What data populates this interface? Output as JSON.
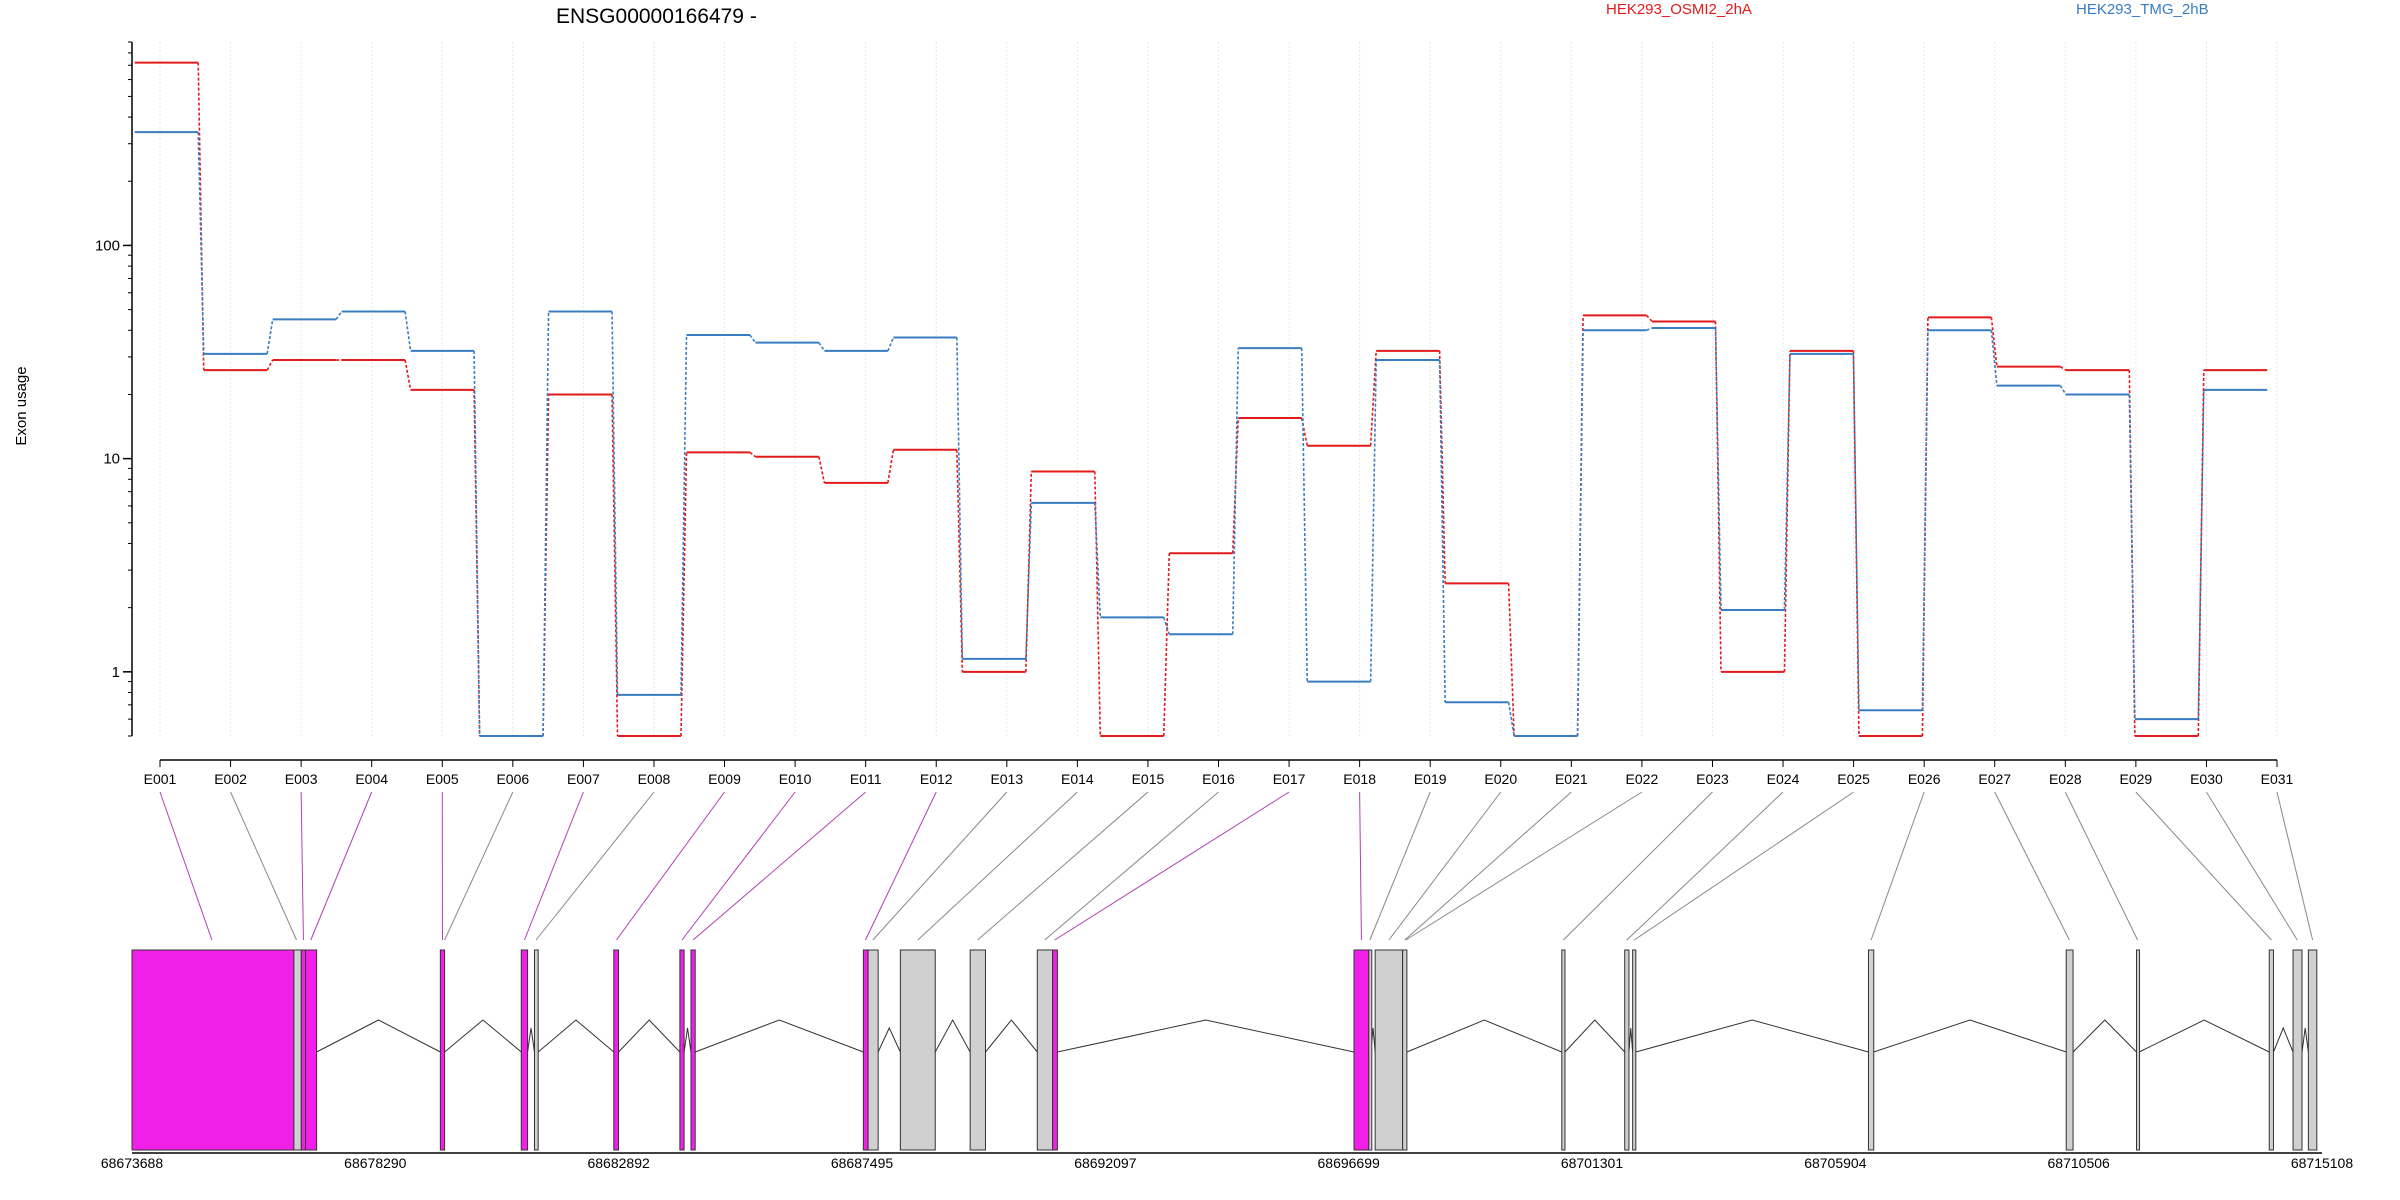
{
  "chart_data": {
    "type": "line",
    "title": "ENSG00000166479 -",
    "xlabel": "",
    "ylabel": "Exon usage",
    "y_scale": "log",
    "ylim": [
      0.5,
      900
    ],
    "y_ticks": [
      1,
      10,
      100
    ],
    "y_tick_labels": [
      "1",
      "10",
      "100"
    ],
    "grid": "vertical dotted lines at each exon",
    "legend_placement": "top",
    "colors": {
      "HEK293_OSMI2_2hA": "#e31a1c",
      "HEK293_TMG_2hB": "#3a7cc1",
      "exon_de": "#f020e8",
      "exon_other": "#d0d0d0"
    },
    "categories": [
      "E001",
      "E002",
      "E003",
      "E004",
      "E005",
      "E006",
      "E007",
      "E008",
      "E009",
      "E010",
      "E011",
      "E012",
      "E013",
      "E014",
      "E015",
      "E016",
      "E017",
      "E018",
      "E019",
      "E020",
      "E021",
      "E022",
      "E023",
      "E024",
      "E025",
      "E026",
      "E027",
      "E028",
      "E029",
      "E030",
      "E031"
    ],
    "series": [
      {
        "name": "HEK293_OSMI2_2hA",
        "color": "#e31a1c",
        "values": [
          720,
          26,
          29,
          29,
          21,
          0.5,
          20,
          0.5,
          10.7,
          10.2,
          7.7,
          11,
          1.0,
          8.7,
          0.5,
          3.6,
          15.5,
          11.5,
          32,
          2.6,
          0.5,
          47,
          44,
          1.0,
          32,
          0.5,
          46,
          27,
          26,
          0.5,
          26
        ]
      },
      {
        "name": "HEK293_TMG_2hB",
        "color": "#3a7cc1",
        "values": [
          340,
          31,
          45,
          49,
          32,
          0.5,
          49,
          0.78,
          38,
          35,
          32,
          37,
          1.15,
          6.2,
          1.8,
          1.5,
          33,
          0.9,
          29,
          0.72,
          0.5,
          40,
          41,
          1.95,
          31,
          0.66,
          40,
          22,
          20,
          0.6,
          21
        ]
      }
    ],
    "gene_model": {
      "genomic_range": [
        68673688,
        68715108
      ],
      "axis_ticks": [
        68673688,
        68678290,
        68682892,
        68687495,
        68692097,
        68696699,
        68701301,
        68705904,
        68710506,
        68715108
      ],
      "exons": [
        {
          "start": 68673688,
          "end": 68676750,
          "highlight": true
        },
        {
          "start": 68676750,
          "end": 68676890,
          "highlight": false
        },
        {
          "start": 68676890,
          "end": 68676970,
          "highlight": true
        },
        {
          "start": 68676970,
          "end": 68677180,
          "highlight": true
        },
        {
          "start": 68679520,
          "end": 68679600,
          "highlight": true
        },
        {
          "start": 68681050,
          "end": 68681170,
          "highlight": true
        },
        {
          "start": 68681300,
          "end": 68681370,
          "highlight": false
        },
        {
          "start": 68682800,
          "end": 68682890,
          "highlight": true
        },
        {
          "start": 68684050,
          "end": 68684130,
          "highlight": true
        },
        {
          "start": 68684260,
          "end": 68684340,
          "highlight": true
        },
        {
          "start": 68687520,
          "end": 68687610,
          "highlight": true
        },
        {
          "start": 68687610,
          "end": 68687800,
          "highlight": false
        },
        {
          "start": 68688220,
          "end": 68688880,
          "highlight": false
        },
        {
          "start": 68689540,
          "end": 68689830,
          "highlight": false
        },
        {
          "start": 68690810,
          "end": 68691100,
          "highlight": false
        },
        {
          "start": 68691100,
          "end": 68691190,
          "highlight": true
        },
        {
          "start": 68696800,
          "end": 68697080,
          "highlight": true
        },
        {
          "start": 68697080,
          "end": 68697120,
          "highlight": false
        },
        {
          "start": 68697200,
          "end": 68697720,
          "highlight": false
        },
        {
          "start": 68697720,
          "end": 68697800,
          "highlight": false
        },
        {
          "start": 68700730,
          "end": 68700790,
          "highlight": false
        },
        {
          "start": 68701920,
          "end": 68702000,
          "highlight": false
        },
        {
          "start": 68702070,
          "end": 68702130,
          "highlight": false
        },
        {
          "start": 68706530,
          "end": 68706630,
          "highlight": false
        },
        {
          "start": 68710270,
          "end": 68710400,
          "highlight": false
        },
        {
          "start": 68711600,
          "end": 68711650,
          "highlight": false
        },
        {
          "start": 68714110,
          "end": 68714190,
          "highlight": false
        },
        {
          "start": 68714560,
          "end": 68714730,
          "highlight": false
        },
        {
          "start": 68714850,
          "end": 68715010,
          "highlight": false
        }
      ],
      "exon_bin_map": [
        {
          "bin": "E001",
          "coord": 68675200,
          "highlight": true
        },
        {
          "bin": "E002",
          "coord": 68676800,
          "highlight": false
        },
        {
          "bin": "E003",
          "coord": 68676930,
          "highlight": true
        },
        {
          "bin": "E004",
          "coord": 68677070,
          "highlight": true
        },
        {
          "bin": "E005",
          "coord": 68679560,
          "highlight": true
        },
        {
          "bin": "E006",
          "coord": 68679600,
          "highlight": false
        },
        {
          "bin": "E007",
          "coord": 68681110,
          "highlight": true
        },
        {
          "bin": "E008",
          "coord": 68681330,
          "highlight": false
        },
        {
          "bin": "E009",
          "coord": 68682850,
          "highlight": true
        },
        {
          "bin": "E010",
          "coord": 68684090,
          "highlight": true
        },
        {
          "bin": "E011",
          "coord": 68684300,
          "highlight": true
        },
        {
          "bin": "E012",
          "coord": 68687560,
          "highlight": true
        },
        {
          "bin": "E013",
          "coord": 68687700,
          "highlight": false
        },
        {
          "bin": "E014",
          "coord": 68688550,
          "highlight": false
        },
        {
          "bin": "E015",
          "coord": 68689680,
          "highlight": false
        },
        {
          "bin": "E016",
          "coord": 68690950,
          "highlight": false
        },
        {
          "bin": "E017",
          "coord": 68691140,
          "highlight": true
        },
        {
          "bin": "E018",
          "coord": 68696940,
          "highlight": true
        },
        {
          "bin": "E019",
          "coord": 68697100,
          "highlight": false
        },
        {
          "bin": "E020",
          "coord": 68697460,
          "highlight": false
        },
        {
          "bin": "E021",
          "coord": 68697760,
          "highlight": false
        },
        {
          "bin": "E022",
          "coord": 68697780,
          "highlight": false
        },
        {
          "bin": "E023",
          "coord": 68700760,
          "highlight": false
        },
        {
          "bin": "E024",
          "coord": 68701960,
          "highlight": false
        },
        {
          "bin": "E025",
          "coord": 68702100,
          "highlight": false
        },
        {
          "bin": "E026",
          "coord": 68706580,
          "highlight": false
        },
        {
          "bin": "E027",
          "coord": 68710330,
          "highlight": false
        },
        {
          "bin": "E028",
          "coord": 68711620,
          "highlight": false
        },
        {
          "bin": "E029",
          "coord": 68714150,
          "highlight": false
        },
        {
          "bin": "E030",
          "coord": 68714640,
          "highlight": false
        },
        {
          "bin": "E031",
          "coord": 68714930,
          "highlight": false
        }
      ]
    }
  }
}
